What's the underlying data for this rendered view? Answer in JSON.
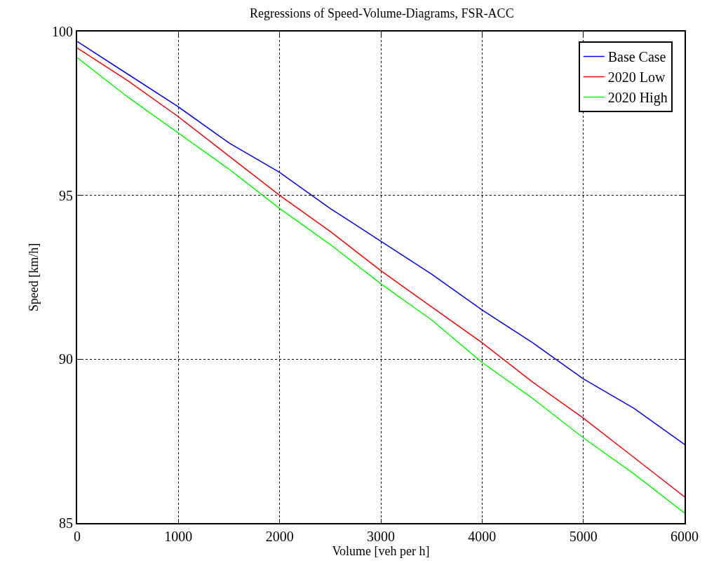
{
  "chart_data": {
    "type": "line",
    "title": "Regressions of Speed-Volume-Diagrams, FSR-ACC",
    "xlabel": "Volume [veh per h]",
    "ylabel": "Speed [km/h]",
    "x": [
      0,
      500,
      1000,
      1500,
      2000,
      2500,
      3000,
      3500,
      4000,
      4500,
      5000,
      5500,
      6000
    ],
    "series": [
      {
        "name": "Base Case",
        "color": "#0000ff",
        "values": [
          99.7,
          98.7,
          97.7,
          96.6,
          95.7,
          94.6,
          93.6,
          92.6,
          91.5,
          90.5,
          89.4,
          88.5,
          87.4
        ]
      },
      {
        "name": "2020 Low",
        "color": "#ff0000",
        "values": [
          99.5,
          98.5,
          97.4,
          96.2,
          95.0,
          93.9,
          92.7,
          91.6,
          90.5,
          89.3,
          88.2,
          87.0,
          85.8
        ]
      },
      {
        "name": "2020 High",
        "color": "#00ff00",
        "values": [
          99.2,
          98.0,
          96.9,
          95.8,
          94.6,
          93.5,
          92.3,
          91.2,
          89.9,
          88.8,
          87.6,
          86.5,
          85.3
        ]
      }
    ],
    "xlim": [
      0,
      6000
    ],
    "xticks": [
      0,
      1000,
      2000,
      3000,
      4000,
      5000,
      6000
    ],
    "ylim": [
      85,
      100
    ],
    "yticks": [
      85,
      90,
      95,
      100
    ],
    "grid": true,
    "legend": "top right",
    "marker": "none",
    "line_style": "solid"
  }
}
